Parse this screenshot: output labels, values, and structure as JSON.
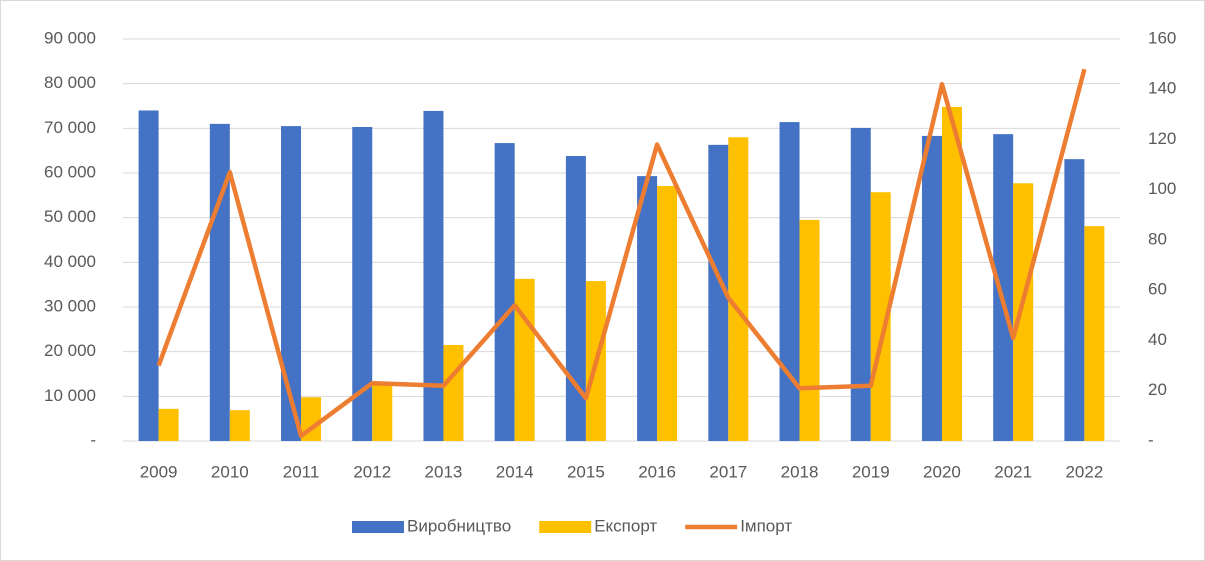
{
  "chart_data": {
    "type": "bar",
    "categories": [
      "2009",
      "2010",
      "2011",
      "2012",
      "2013",
      "2014",
      "2015",
      "2016",
      "2017",
      "2018",
      "2019",
      "2020",
      "2021",
      "2022"
    ],
    "series": [
      {
        "name": "Виробництво",
        "color": "#4472c4",
        "values": [
          74000,
          71000,
          70500,
          70300,
          73900,
          66700,
          63800,
          59300,
          66300,
          71400,
          70100,
          68300,
          68700,
          63100
        ]
      },
      {
        "name": "Експорт",
        "color": "#ffc000",
        "values": [
          7200,
          6900,
          9800,
          12800,
          21500,
          36300,
          35800,
          57100,
          68000,
          49500,
          55700,
          74800,
          57700,
          48100
        ]
      },
      {
        "name": "Імпорт",
        "color": "#ed7d31",
        "type": "line",
        "axis": "y2",
        "values": [
          30,
          107,
          2,
          23,
          22,
          54,
          17,
          118,
          57,
          21,
          22,
          142,
          41,
          148
        ]
      }
    ],
    "ylim": [
      0,
      90000
    ],
    "yticks": [
      {
        "value": 0,
        "label": "-"
      },
      {
        "value": 10000,
        "label": "10 000"
      },
      {
        "value": 20000,
        "label": "20 000"
      },
      {
        "value": 30000,
        "label": "30 000"
      },
      {
        "value": 40000,
        "label": "40 000"
      },
      {
        "value": 50000,
        "label": "50 000"
      },
      {
        "value": 60000,
        "label": "60 000"
      },
      {
        "value": 70000,
        "label": "70 000"
      },
      {
        "value": 80000,
        "label": "80 000"
      },
      {
        "value": 90000,
        "label": "90 000"
      }
    ],
    "y2lim": [
      0,
      160
    ],
    "y2ticks": [
      {
        "value": 0,
        "label": "-"
      },
      20,
      40,
      60,
      80,
      100,
      120,
      140,
      160
    ],
    "grid": true,
    "legend": "bottom"
  }
}
